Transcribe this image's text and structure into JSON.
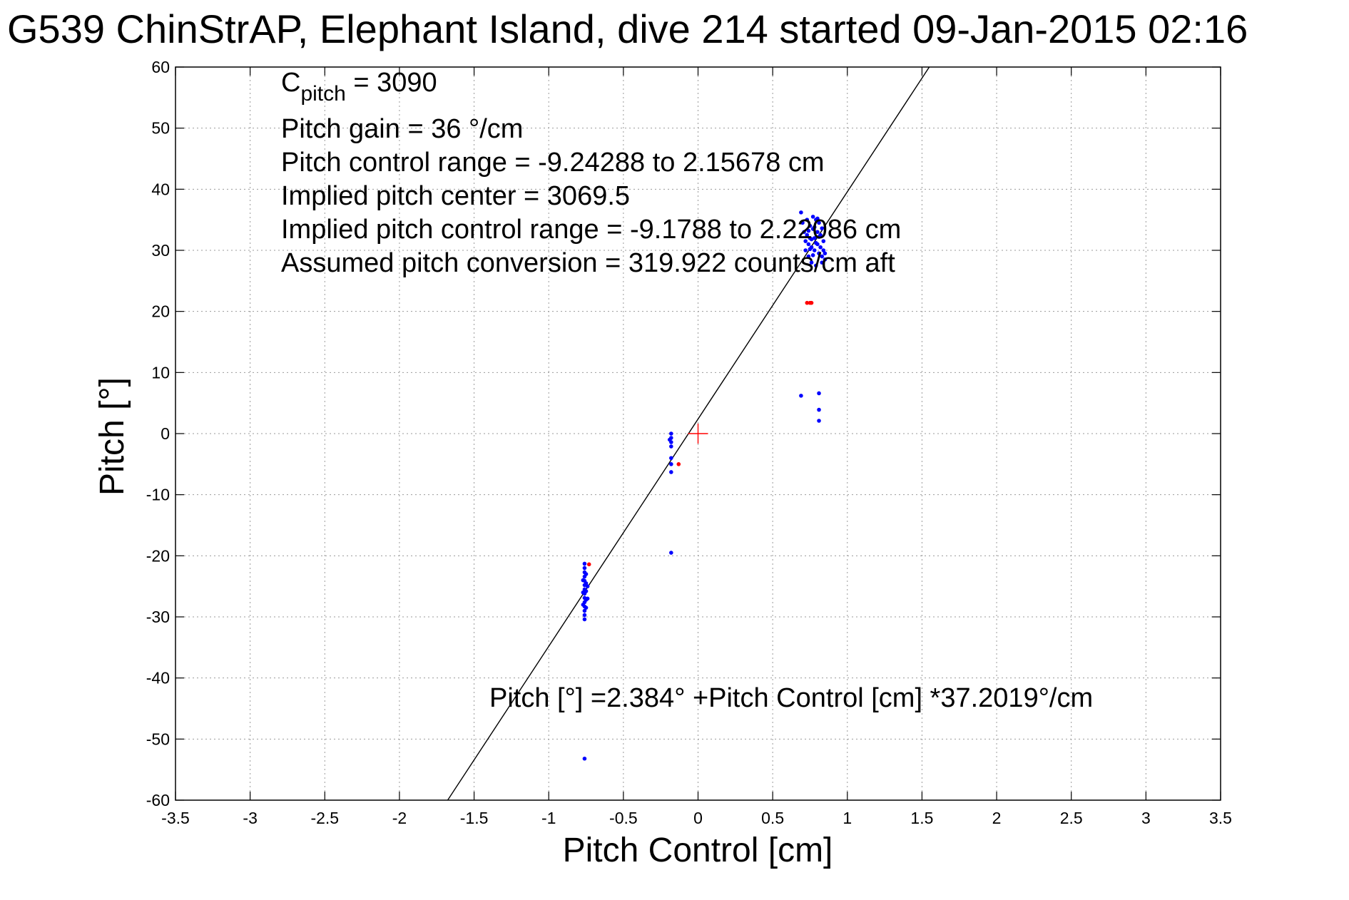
{
  "chart_data": {
    "type": "scatter",
    "title": "G539 ChinStrAP, Elephant Island, dive 214 started 09-Jan-2015 02:16",
    "xlabel": "Pitch Control [cm]",
    "ylabel": "Pitch [°]",
    "xlim": [
      -3.5,
      3.5
    ],
    "ylim": [
      -60,
      60
    ],
    "xticks": [
      "-3.5",
      "-3",
      "-2.5",
      "-2",
      "-1.5",
      "-1",
      "-0.5",
      "0",
      "0.5",
      "1",
      "1.5",
      "2",
      "2.5",
      "3",
      "3.5"
    ],
    "yticks": [
      "60",
      "50",
      "40",
      "30",
      "20",
      "10",
      "0",
      "-10",
      "-20",
      "-30",
      "-40",
      "-50",
      "-60"
    ],
    "grid": true,
    "annotations": {
      "c_pitch_main": "C",
      "c_pitch_sub": "pitch",
      "c_pitch_value": " = 3090",
      "pitch_gain": "Pitch gain = 36 °/cm",
      "control_range": "Pitch control range = -9.24288 to 2.15678 cm",
      "implied_center": "Implied pitch center = 3069.5",
      "implied_range": "Implied pitch control range = -9.1788 to 2.22086 cm",
      "conversion": "Assumed pitch conversion = 319.922 counts/cm aft",
      "fit_equation": "Pitch [°] =2.384° +Pitch Control [cm] *37.2019°/cm"
    },
    "fit_line": {
      "intercept": 2.384,
      "slope": 37.2019,
      "color": "#000000"
    },
    "center_marker": {
      "x": 0,
      "y": 0,
      "color": "#ff0000"
    },
    "series": [
      {
        "color": "#0000ff",
        "points": [
          [
            -0.76,
            -21.3
          ],
          [
            -0.76,
            -22.0
          ],
          [
            -0.76,
            -22.7
          ],
          [
            -0.76,
            -23.4
          ],
          [
            -0.76,
            -24.1
          ],
          [
            -0.76,
            -24.8
          ],
          [
            -0.76,
            -25.5
          ],
          [
            -0.76,
            -26.2
          ],
          [
            -0.76,
            -26.9
          ],
          [
            -0.76,
            -27.6
          ],
          [
            -0.76,
            -28.3
          ],
          [
            -0.76,
            -29.0
          ],
          [
            -0.76,
            -29.7
          ],
          [
            -0.76,
            -30.4
          ],
          [
            -0.75,
            -23.0
          ],
          [
            -0.75,
            -24.5
          ],
          [
            -0.75,
            -25.8
          ],
          [
            -0.75,
            -27.2
          ],
          [
            -0.75,
            -28.5
          ],
          [
            -0.77,
            -24.0
          ],
          [
            -0.77,
            -26.0
          ],
          [
            -0.77,
            -28.0
          ],
          [
            -0.74,
            -25.0
          ],
          [
            -0.74,
            -27.0
          ],
          [
            -0.76,
            -53.2
          ],
          [
            -0.18,
            0.0
          ],
          [
            -0.18,
            -0.7
          ],
          [
            -0.18,
            -1.4
          ],
          [
            -0.18,
            -2.1
          ],
          [
            -0.19,
            -1.0
          ],
          [
            -0.18,
            -4.0
          ],
          [
            -0.18,
            -5.0
          ],
          [
            -0.18,
            -6.3
          ],
          [
            -0.18,
            -19.5
          ],
          [
            0.69,
            6.2
          ],
          [
            0.81,
            6.6
          ],
          [
            0.81,
            3.9
          ],
          [
            0.81,
            2.1
          ],
          [
            0.69,
            36.2
          ],
          [
            0.7,
            34.5
          ],
          [
            0.71,
            33.0
          ],
          [
            0.72,
            31.5
          ],
          [
            0.72,
            30.0
          ],
          [
            0.73,
            35.0
          ],
          [
            0.73,
            32.5
          ],
          [
            0.74,
            31.0
          ],
          [
            0.74,
            29.0
          ],
          [
            0.75,
            34.0
          ],
          [
            0.75,
            32.0
          ],
          [
            0.76,
            30.5
          ],
          [
            0.76,
            28.0
          ],
          [
            0.77,
            35.5
          ],
          [
            0.77,
            33.5
          ],
          [
            0.78,
            32.0
          ],
          [
            0.78,
            30.0
          ],
          [
            0.79,
            27.5
          ],
          [
            0.79,
            35.0
          ],
          [
            0.8,
            33.0
          ],
          [
            0.8,
            31.0
          ],
          [
            0.81,
            29.5
          ],
          [
            0.81,
            34.5
          ],
          [
            0.82,
            32.5
          ],
          [
            0.82,
            30.5
          ],
          [
            0.83,
            29.0
          ],
          [
            0.83,
            28.0
          ],
          [
            0.84,
            31.5
          ],
          [
            0.84,
            30.0
          ],
          [
            0.85,
            29.5
          ],
          [
            0.85,
            28.5
          ],
          [
            0.76,
            31.8
          ],
          [
            0.78,
            33.8
          ],
          [
            0.8,
            35.2
          ],
          [
            0.74,
            33.2
          ],
          [
            0.79,
            31.2
          ],
          [
            0.81,
            32.2
          ],
          [
            0.77,
            29.2
          ],
          [
            0.83,
            33.6
          ],
          [
            0.75,
            30.2
          ]
        ]
      },
      {
        "color": "#ff0000",
        "points": [
          [
            -0.73,
            -21.4
          ],
          [
            -0.13,
            -5.0
          ],
          [
            0.73,
            21.4
          ],
          [
            0.75,
            21.4
          ],
          [
            0.76,
            21.4
          ]
        ]
      }
    ]
  }
}
